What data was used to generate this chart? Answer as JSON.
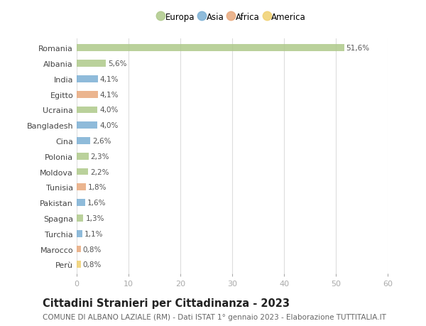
{
  "countries": [
    "Romania",
    "Albania",
    "India",
    "Egitto",
    "Ucraina",
    "Bangladesh",
    "Cina",
    "Polonia",
    "Moldova",
    "Tunisia",
    "Pakistan",
    "Spagna",
    "Turchia",
    "Marocco",
    "Perù"
  ],
  "values": [
    51.6,
    5.6,
    4.1,
    4.1,
    4.0,
    4.0,
    2.6,
    2.3,
    2.2,
    1.8,
    1.6,
    1.3,
    1.1,
    0.8,
    0.8
  ],
  "labels": [
    "51,6%",
    "5,6%",
    "4,1%",
    "4,1%",
    "4,0%",
    "4,0%",
    "2,6%",
    "2,3%",
    "2,2%",
    "1,8%",
    "1,6%",
    "1,3%",
    "1,1%",
    "0,8%",
    "0,8%"
  ],
  "continents": [
    "Europa",
    "Europa",
    "Asia",
    "Africa",
    "Europa",
    "Asia",
    "Asia",
    "Europa",
    "Europa",
    "Africa",
    "Asia",
    "Europa",
    "Asia",
    "Africa",
    "America"
  ],
  "colors": {
    "Europa": "#aec98a",
    "Asia": "#7bafd4",
    "Africa": "#e8a87c",
    "America": "#f0d070"
  },
  "legend_order": [
    "Europa",
    "Asia",
    "Africa",
    "America"
  ],
  "xlim": [
    0,
    60
  ],
  "xticks": [
    0,
    10,
    20,
    30,
    40,
    50,
    60
  ],
  "title": "Cittadini Stranieri per Cittadinanza - 2023",
  "subtitle": "COMUNE DI ALBANO LAZIALE (RM) - Dati ISTAT 1° gennaio 2023 - Elaborazione TUTTITALIA.IT",
  "bg_color": "#ffffff",
  "grid_color": "#dddddd",
  "bar_height": 0.45,
  "title_fontsize": 10.5,
  "subtitle_fontsize": 7.5,
  "tick_fontsize": 8,
  "label_fontsize": 7.5,
  "legend_fontsize": 8.5
}
